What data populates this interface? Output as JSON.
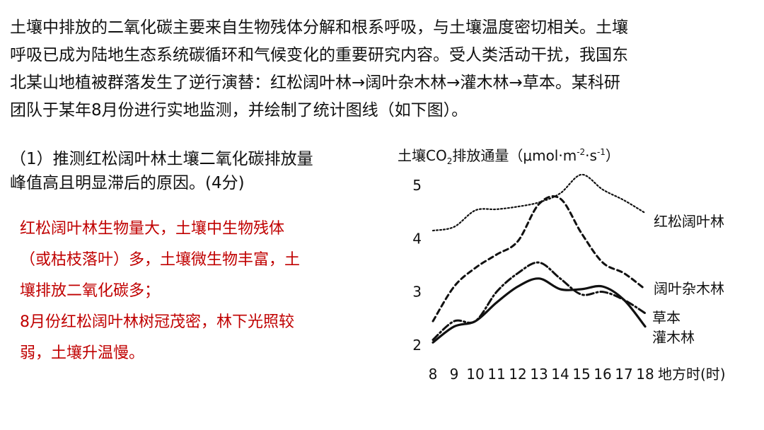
{
  "intro_lines": [
    "土壤中排放的二氧化碳主要来自生物残体分解和根系呼吸，与土壤温度密切相关。土壤",
    "呼吸已成为陆地生态系统碳循环和气候变化的重要研究内容。受人类活动干扰，我国东",
    "北某山地植被群落发生了逆行演替：红松阔叶林→阔叶杂木林→灌木林→草本。某科研",
    "团队于某年8月份进行实地监测，并绘制了统计图线（如下图）。"
  ],
  "question_lines": [
    "（1）推测红松阔叶林土壤二氧化碳排放量",
    "峰值高且明显滞后的原因。(4分)"
  ],
  "answer_lines": [
    "红松阔叶林生物量大，土壤中生物残体",
    "（或枯枝落叶）多，土壤微生物丰富，土",
    "壤排放二氧化碳多；",
    "8月份红松阔叶林树冠茂密，林下光照较",
    "弱，土壤升温慢。"
  ],
  "colors": {
    "answer": "#c00000",
    "text": "#111111"
  },
  "chart_data": {
    "type": "line",
    "title": "",
    "ylabel_parts": {
      "prefix": "土壤CO",
      "sub": "2",
      "middle": "排放通量（μmol·m",
      "sup1": "-2",
      "dot": "·s",
      "sup2": "-1",
      "suffix": "）"
    },
    "xlabel": "地方时(时)",
    "x": [
      8,
      9,
      10,
      11,
      12,
      13,
      14,
      15,
      16,
      17,
      18
    ],
    "xlim": [
      8,
      18
    ],
    "ylim": [
      2,
      5
    ],
    "yticks": [
      2,
      3,
      4,
      5
    ],
    "grid": false,
    "legend": "inline-right",
    "series": [
      {
        "name": "红松阔叶林",
        "style": "dotted",
        "points": [
          [
            8,
            4.15
          ],
          [
            9,
            4.22
          ],
          [
            10,
            4.53
          ],
          [
            11,
            4.55
          ],
          [
            12,
            4.6
          ],
          [
            13,
            4.68
          ],
          [
            14,
            4.85
          ],
          [
            15,
            5.2
          ],
          [
            16,
            4.92
          ],
          [
            17,
            4.72
          ],
          [
            18,
            4.48
          ]
        ]
      },
      {
        "name": "阔叶杂木林",
        "style": "dashed",
        "points": [
          [
            8,
            2.45
          ],
          [
            9,
            3.1
          ],
          [
            10,
            3.45
          ],
          [
            11,
            3.7
          ],
          [
            12,
            3.95
          ],
          [
            13,
            4.65
          ],
          [
            14,
            4.75
          ],
          [
            15,
            4.1
          ],
          [
            16,
            3.55
          ],
          [
            17,
            3.35
          ],
          [
            18,
            3.05
          ]
        ]
      },
      {
        "name": "草本",
        "style": "dashdot",
        "points": [
          [
            8,
            2.1
          ],
          [
            9,
            2.45
          ],
          [
            10,
            2.45
          ],
          [
            11,
            3.0
          ],
          [
            12,
            3.35
          ],
          [
            13,
            3.55
          ],
          [
            14,
            3.25
          ],
          [
            15,
            2.95
          ],
          [
            16,
            3.0
          ],
          [
            17,
            2.85
          ],
          [
            18,
            2.6
          ]
        ]
      },
      {
        "name": "灌木林",
        "style": "solid",
        "points": [
          [
            8,
            2.05
          ],
          [
            9,
            2.35
          ],
          [
            10,
            2.45
          ],
          [
            11,
            2.8
          ],
          [
            12,
            3.1
          ],
          [
            13,
            3.25
          ],
          [
            14,
            3.05
          ],
          [
            15,
            3.05
          ],
          [
            16,
            3.1
          ],
          [
            17,
            2.85
          ],
          [
            18,
            2.35
          ]
        ]
      }
    ]
  }
}
